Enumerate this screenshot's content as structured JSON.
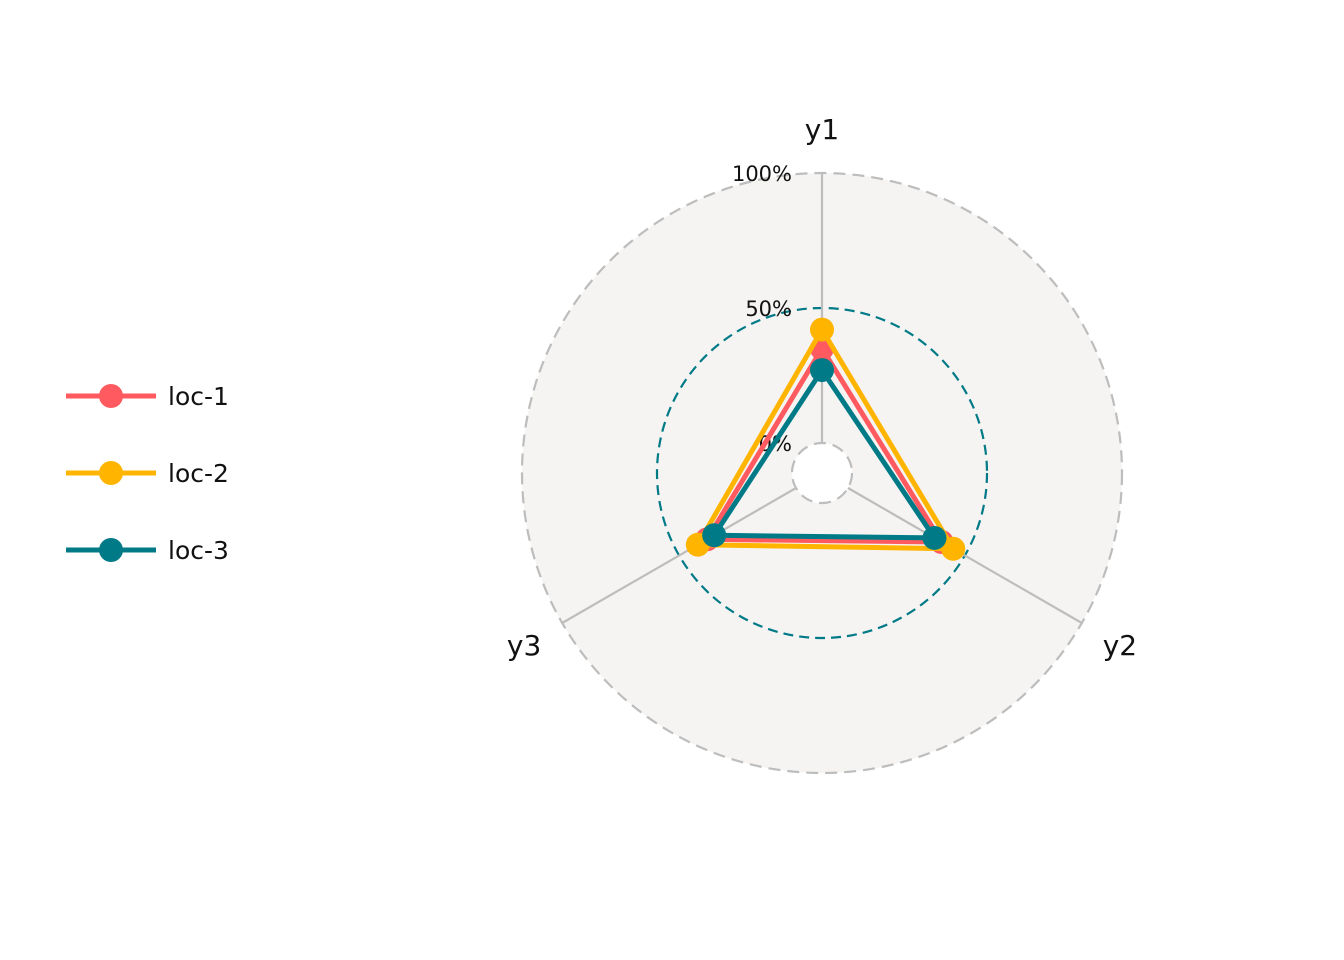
{
  "chart_data": {
    "type": "radar",
    "axes": [
      "y1",
      "y2",
      "y3"
    ],
    "grid_labels": [
      "0%",
      "50%",
      "100%"
    ],
    "grid_values": [
      0,
      50,
      100
    ],
    "ylim": [
      0,
      100
    ],
    "legend_position": "left",
    "series": [
      {
        "name": "loc-1",
        "color": "#FF5A5F",
        "values": [
          35,
          40,
          38
        ]
      },
      {
        "name": "loc-2",
        "color": "#FFB400",
        "values": [
          42,
          45,
          42
        ]
      },
      {
        "name": "loc-3",
        "color": "#007A87",
        "values": [
          27,
          37,
          35
        ]
      }
    ],
    "colors": {
      "background_panel": "#F5F4F2",
      "grid_outer": "#BDBDBD",
      "grid_mid": "#007A87",
      "axis_line": "#BDBDBD"
    }
  }
}
